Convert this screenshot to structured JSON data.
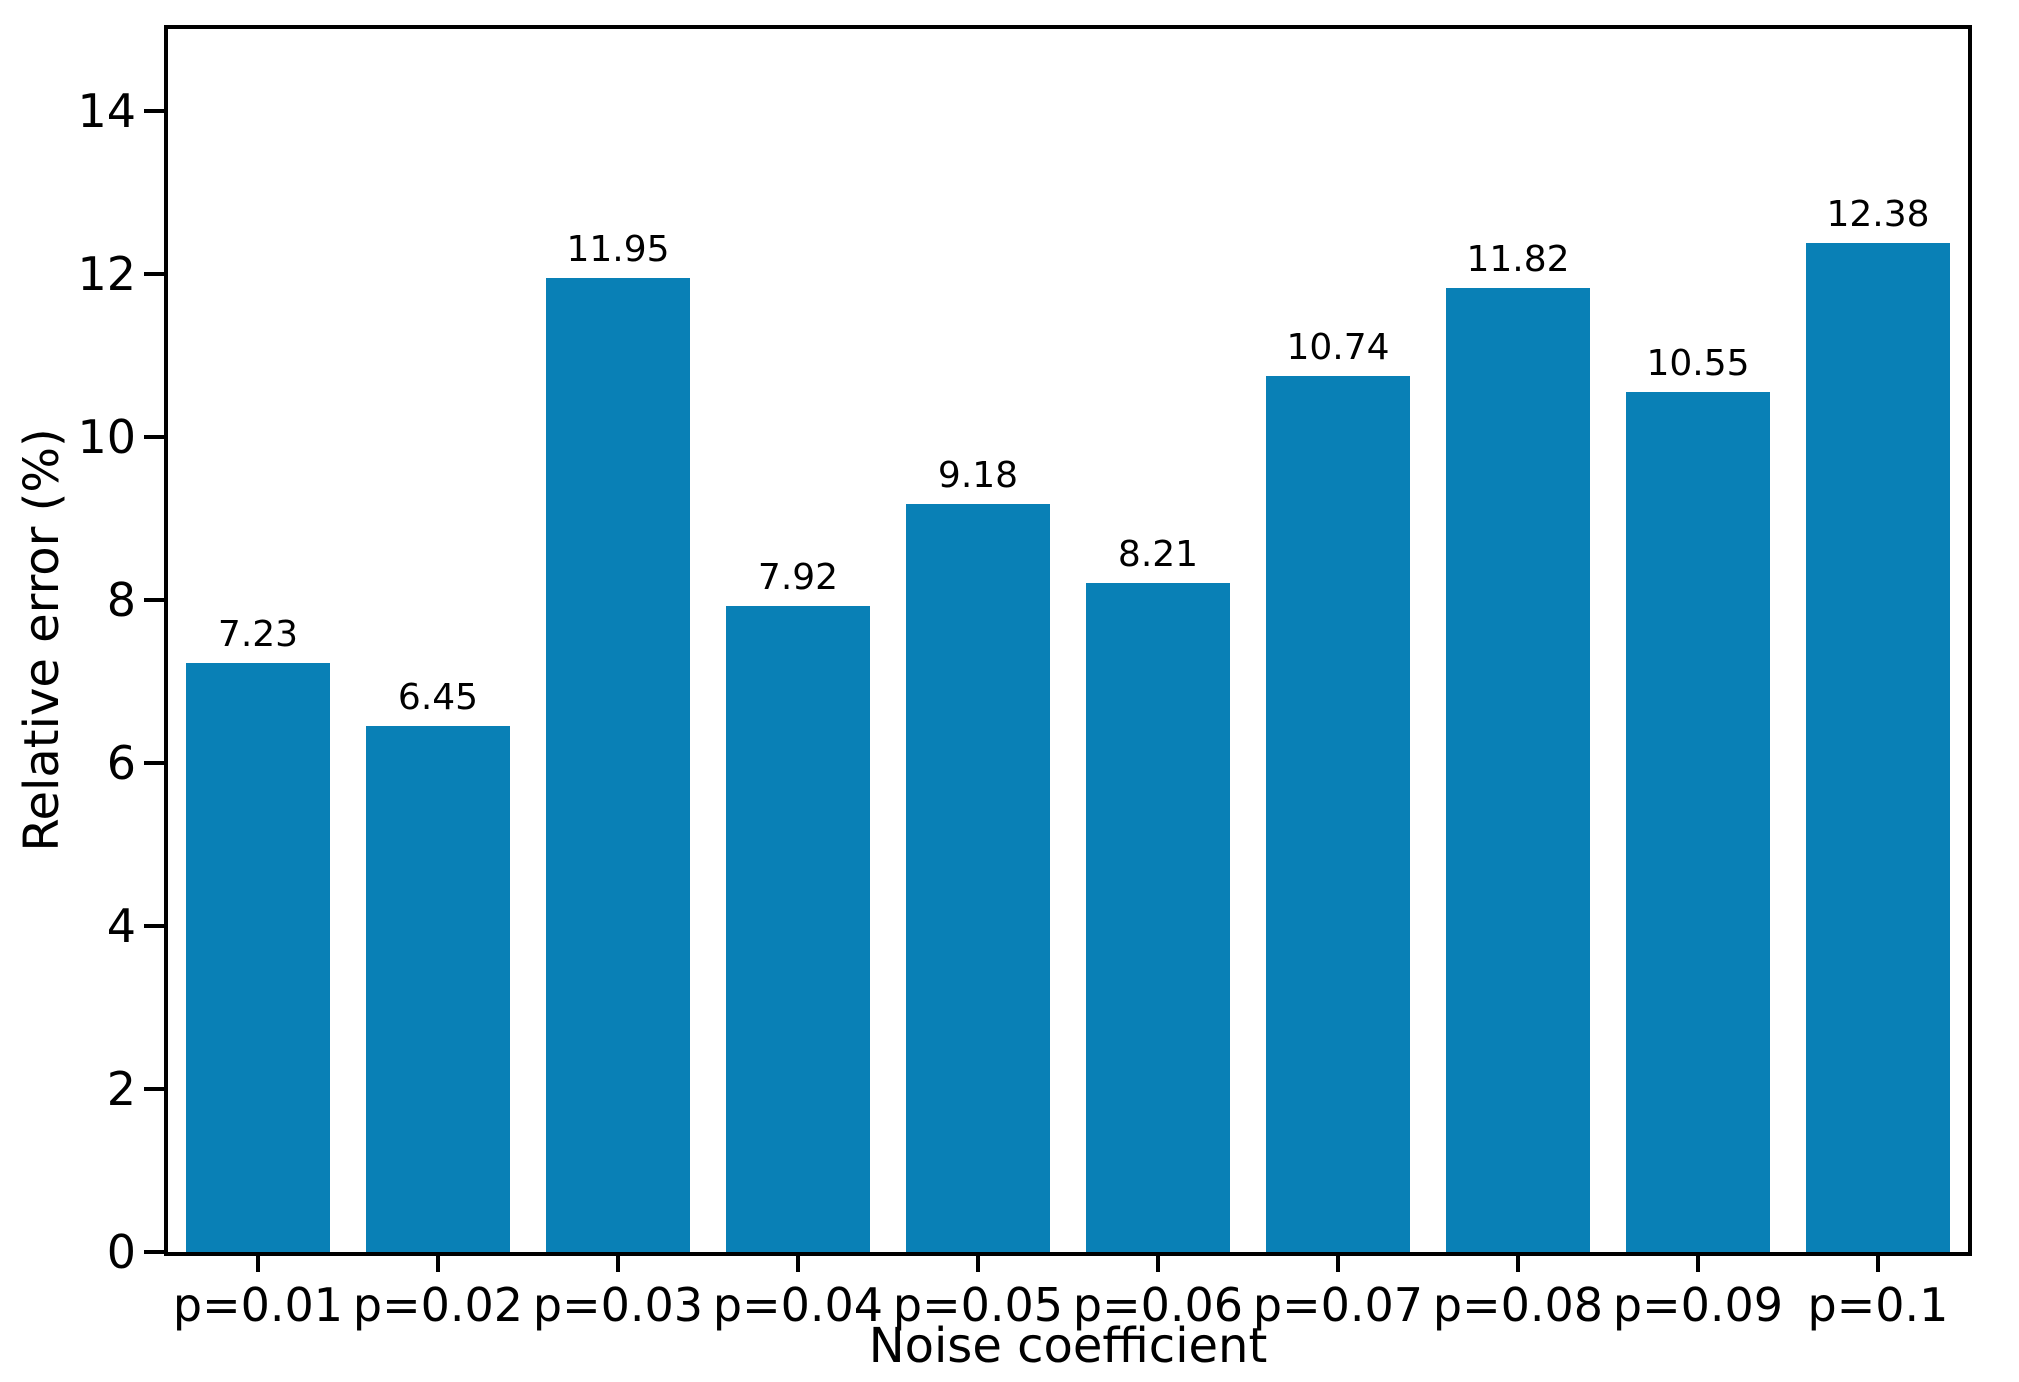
{
  "figure": {
    "background_color": "#ffffff",
    "bar_color": "#0980b6",
    "axis_color": "#000000",
    "text_color": "#000000"
  },
  "chart_data": {
    "type": "bar",
    "title": "",
    "xlabel": "Noise coefficient",
    "ylabel": "Relative error (%)",
    "categories": [
      "p=0.01",
      "p=0.02",
      "p=0.03",
      "p=0.04",
      "p=0.05",
      "p=0.06",
      "p=0.07",
      "p=0.08",
      "p=0.09",
      "p=0.1"
    ],
    "values": [
      7.23,
      6.45,
      11.95,
      7.92,
      9.18,
      8.21,
      10.74,
      11.82,
      10.55,
      12.38
    ],
    "value_labels": [
      "7.23",
      "6.45",
      "11.95",
      "7.92",
      "9.18",
      "8.21",
      "10.74",
      "11.82",
      "10.55",
      "12.38"
    ],
    "ylim": [
      0,
      15
    ],
    "yticks": [
      0,
      2,
      4,
      6,
      8,
      10,
      12,
      14
    ],
    "grid": false,
    "legend_position": "none",
    "bar_width_fraction": 0.8
  }
}
